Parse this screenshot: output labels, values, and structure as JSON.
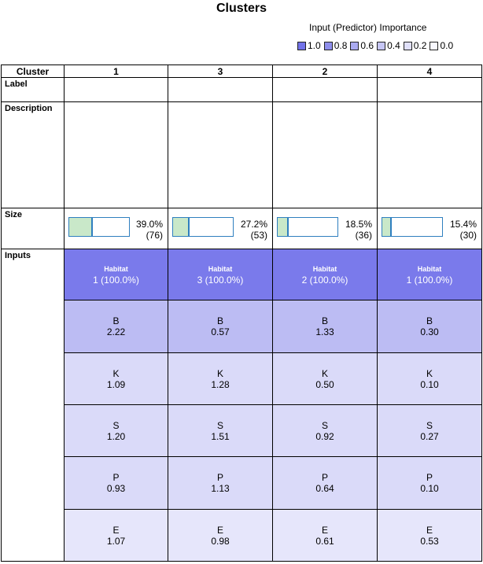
{
  "title": "Clusters",
  "legend": {
    "title": "Input (Predictor) Importance",
    "items": [
      {
        "label": "1.0",
        "color": "#7272e8"
      },
      {
        "label": "0.8",
        "color": "#8e8eec"
      },
      {
        "label": "0.6",
        "color": "#aaaaf0"
      },
      {
        "label": "0.4",
        "color": "#c6c6f5"
      },
      {
        "label": "0.2",
        "color": "#e0e0fa"
      },
      {
        "label": "0.0",
        "color": "#f8f8ff"
      }
    ]
  },
  "table": {
    "header_label": "Cluster",
    "row_labels": {
      "label": "Label",
      "description": "Description",
      "size": "Size",
      "inputs": "Inputs"
    },
    "clusters": [
      {
        "id": "1",
        "label": "",
        "description": "",
        "size_pct": "39.0%",
        "size_n": "(76)",
        "fill": 0.39,
        "inputs": [
          {
            "name": "Habitat",
            "value": "1 (100.0%)",
            "color": "#7a7aeb"
          },
          {
            "name": "B",
            "value": "2.22",
            "color": "#bcbcf3"
          },
          {
            "name": "K",
            "value": "1.09",
            "color": "#dadaf9"
          },
          {
            "name": "S",
            "value": "1.20",
            "color": "#dadaf9"
          },
          {
            "name": "P",
            "value": "0.93",
            "color": "#dadaf9"
          },
          {
            "name": "E",
            "value": "1.07",
            "color": "#e6e6fb"
          }
        ]
      },
      {
        "id": "3",
        "label": "",
        "description": "",
        "size_pct": "27.2%",
        "size_n": "(53)",
        "fill": 0.272,
        "inputs": [
          {
            "name": "Habitat",
            "value": "3 (100.0%)",
            "color": "#7a7aeb"
          },
          {
            "name": "B",
            "value": "0.57",
            "color": "#bcbcf3"
          },
          {
            "name": "K",
            "value": "1.28",
            "color": "#dadaf9"
          },
          {
            "name": "S",
            "value": "1.51",
            "color": "#dadaf9"
          },
          {
            "name": "P",
            "value": "1.13",
            "color": "#dadaf9"
          },
          {
            "name": "E",
            "value": "0.98",
            "color": "#e6e6fb"
          }
        ]
      },
      {
        "id": "2",
        "label": "",
        "description": "",
        "size_pct": "18.5%",
        "size_n": "(36)",
        "fill": 0.185,
        "inputs": [
          {
            "name": "Habitat",
            "value": "2 (100.0%)",
            "color": "#7a7aeb"
          },
          {
            "name": "B",
            "value": "1.33",
            "color": "#bcbcf3"
          },
          {
            "name": "K",
            "value": "0.50",
            "color": "#dadaf9"
          },
          {
            "name": "S",
            "value": "0.92",
            "color": "#dadaf9"
          },
          {
            "name": "P",
            "value": "0.64",
            "color": "#dadaf9"
          },
          {
            "name": "E",
            "value": "0.61",
            "color": "#e6e6fb"
          }
        ]
      },
      {
        "id": "4",
        "label": "",
        "description": "",
        "size_pct": "15.4%",
        "size_n": "(30)",
        "fill": 0.154,
        "inputs": [
          {
            "name": "Habitat",
            "value": "1 (100.0%)",
            "color": "#7a7aeb"
          },
          {
            "name": "B",
            "value": "0.30",
            "color": "#bcbcf3"
          },
          {
            "name": "K",
            "value": "0.10",
            "color": "#dadaf9"
          },
          {
            "name": "S",
            "value": "0.27",
            "color": "#dadaf9"
          },
          {
            "name": "P",
            "value": "0.10",
            "color": "#dadaf9"
          },
          {
            "name": "E",
            "value": "0.53",
            "color": "#e6e6fb"
          }
        ]
      }
    ]
  }
}
